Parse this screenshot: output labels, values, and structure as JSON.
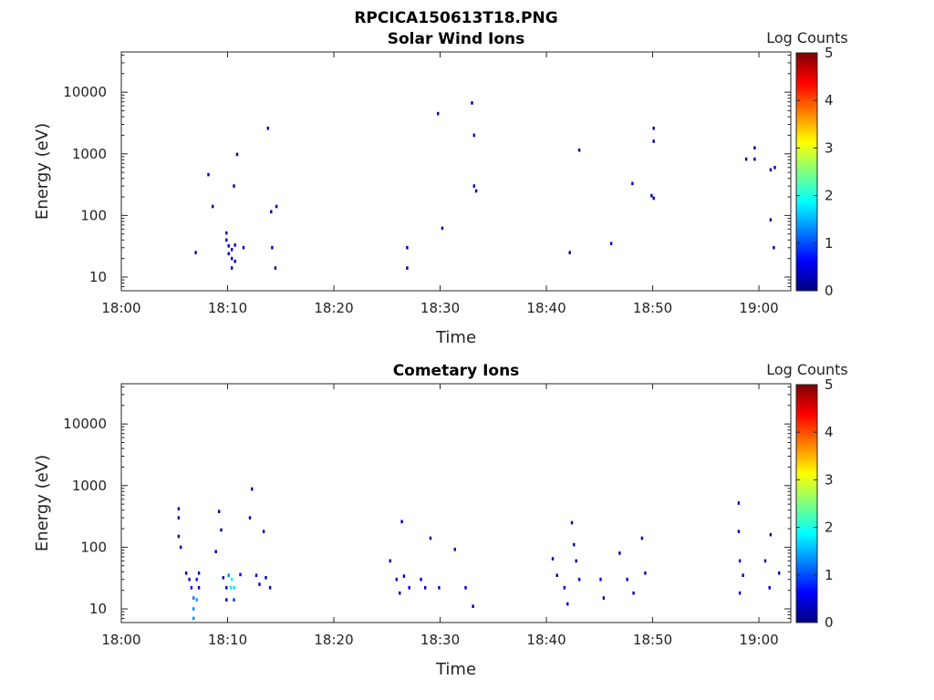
{
  "figure_title": "RPCICA150613T18.PNG",
  "chart_data": [
    {
      "type": "heatmap",
      "title": "Solar Wind Ions",
      "xlabel": "Time",
      "ylabel": "Energy (eV)",
      "x_range": [
        "18:00",
        "19:03"
      ],
      "x_ticks": [
        "18:00",
        "18:10",
        "18:20",
        "18:30",
        "18:40",
        "18:50",
        "19:00"
      ],
      "y_scale": "log",
      "y_range": [
        6,
        45000
      ],
      "y_ticks": [
        "10",
        "100",
        "1000",
        "10000"
      ],
      "colorbar": {
        "title": "Log Counts",
        "range": [
          0,
          5
        ],
        "ticks": [
          "0",
          "1",
          "2",
          "3",
          "4",
          "5"
        ],
        "colormap": "jet"
      },
      "grid": false,
      "cells": [
        {
          "t": "18:07.0",
          "e": 25,
          "v": 0.2
        },
        {
          "t": "18:08.2",
          "e": 460,
          "v": 0.2
        },
        {
          "t": "18:08.6",
          "e": 140,
          "v": 0.2
        },
        {
          "t": "18:09.9",
          "e": 52,
          "v": 0.3
        },
        {
          "t": "18:09.9",
          "e": 40,
          "v": 0.3
        },
        {
          "t": "18:10.1",
          "e": 32,
          "v": 0.4
        },
        {
          "t": "18:10.1",
          "e": 24,
          "v": 0.4
        },
        {
          "t": "18:10.4",
          "e": 20,
          "v": 0.3
        },
        {
          "t": "18:10.4",
          "e": 28,
          "v": 0.3
        },
        {
          "t": "18:10.4",
          "e": 14,
          "v": 0.2
        },
        {
          "t": "18:10.7",
          "e": 33,
          "v": 0.3
        },
        {
          "t": "18:10.7",
          "e": 18,
          "v": 0.3
        },
        {
          "t": "18:10.9",
          "e": 980,
          "v": 0.2
        },
        {
          "t": "18:10.6",
          "e": 300,
          "v": 0.2
        },
        {
          "t": "18:11.5",
          "e": 30,
          "v": 0.2
        },
        {
          "t": "18:13.8",
          "e": 2600,
          "v": 0.2
        },
        {
          "t": "18:14.1",
          "e": 115,
          "v": 0.2
        },
        {
          "t": "18:14.2",
          "e": 30,
          "v": 0.2
        },
        {
          "t": "18:14.5",
          "e": 14,
          "v": 0.2
        },
        {
          "t": "18:14.6",
          "e": 140,
          "v": 0.2
        },
        {
          "t": "18:26.9",
          "e": 30,
          "v": 0.2
        },
        {
          "t": "18:26.9",
          "e": 14,
          "v": 0.2
        },
        {
          "t": "18:29.8",
          "e": 4500,
          "v": 0.2
        },
        {
          "t": "18:30.2",
          "e": 62,
          "v": 0.2
        },
        {
          "t": "18:33.0",
          "e": 6700,
          "v": 0.2
        },
        {
          "t": "18:33.2",
          "e": 2000,
          "v": 0.2
        },
        {
          "t": "18:33.2",
          "e": 300,
          "v": 0.2
        },
        {
          "t": "18:33.4",
          "e": 250,
          "v": 0.2
        },
        {
          "t": "18:42.2",
          "e": 25,
          "v": 0.2
        },
        {
          "t": "18:43.1",
          "e": 1150,
          "v": 0.2
        },
        {
          "t": "18:46.1",
          "e": 35,
          "v": 0.2
        },
        {
          "t": "18:48.1",
          "e": 330,
          "v": 0.2
        },
        {
          "t": "18:49.9",
          "e": 210,
          "v": 0.2
        },
        {
          "t": "18:50.1",
          "e": 190,
          "v": 0.2
        },
        {
          "t": "18:50.1",
          "e": 2600,
          "v": 0.2
        },
        {
          "t": "18:50.1",
          "e": 1600,
          "v": 0.2
        },
        {
          "t": "18:58.8",
          "e": 820,
          "v": 0.2
        },
        {
          "t": "18:59.6",
          "e": 820,
          "v": 0.2
        },
        {
          "t": "18:59.6",
          "e": 1250,
          "v": 0.2
        },
        {
          "t": "19:01.1",
          "e": 85,
          "v": 0.2
        },
        {
          "t": "19:01.1",
          "e": 550,
          "v": 0.2
        },
        {
          "t": "19:01.5",
          "e": 600,
          "v": 0.2
        },
        {
          "t": "19:01.4",
          "e": 30,
          "v": 0.2
        }
      ]
    },
    {
      "type": "heatmap",
      "title": "Cometary Ions",
      "xlabel": "Time",
      "ylabel": "Energy (eV)",
      "x_range": [
        "18:00",
        "19:03"
      ],
      "x_ticks": [
        "18:00",
        "18:10",
        "18:20",
        "18:30",
        "18:40",
        "18:50",
        "19:00"
      ],
      "y_scale": "log",
      "y_range": [
        6,
        45000
      ],
      "y_ticks": [
        "10",
        "100",
        "1000",
        "10000"
      ],
      "colorbar": {
        "title": "Log Counts",
        "range": [
          0,
          5
        ],
        "ticks": [
          "0",
          "1",
          "2",
          "3",
          "4",
          "5"
        ],
        "colormap": "jet"
      },
      "grid": false,
      "cells": [
        {
          "t": "18:05.4",
          "e": 420,
          "v": 0.2
        },
        {
          "t": "18:05.4",
          "e": 300,
          "v": 0.2
        },
        {
          "t": "18:05.4",
          "e": 150,
          "v": 0.2
        },
        {
          "t": "18:05.6",
          "e": 100,
          "v": 0.2
        },
        {
          "t": "18:06.1",
          "e": 38,
          "v": 0.3
        },
        {
          "t": "18:06.4",
          "e": 30,
          "v": 0.4
        },
        {
          "t": "18:06.6",
          "e": 22,
          "v": 0.6
        },
        {
          "t": "18:06.8",
          "e": 15,
          "v": 1.2
        },
        {
          "t": "18:06.8",
          "e": 10,
          "v": 1.3
        },
        {
          "t": "18:06.8",
          "e": 7,
          "v": 1.3
        },
        {
          "t": "18:07.1",
          "e": 14,
          "v": 1.4
        },
        {
          "t": "18:07.1",
          "e": 30,
          "v": 0.7
        },
        {
          "t": "18:07.3",
          "e": 38,
          "v": 0.3
        },
        {
          "t": "18:07.3",
          "e": 22,
          "v": 0.4
        },
        {
          "t": "18:08.9",
          "e": 85,
          "v": 0.2
        },
        {
          "t": "18:09.2",
          "e": 380,
          "v": 0.2
        },
        {
          "t": "18:09.4",
          "e": 190,
          "v": 0.2
        },
        {
          "t": "18:09.6",
          "e": 32,
          "v": 0.4
        },
        {
          "t": "18:09.9",
          "e": 22,
          "v": 0.5
        },
        {
          "t": "18:09.9",
          "e": 14,
          "v": 0.3
        },
        {
          "t": "18:10.1",
          "e": 35,
          "v": 1.3
        },
        {
          "t": "18:10.3",
          "e": 22,
          "v": 1.8
        },
        {
          "t": "18:10.4",
          "e": 30,
          "v": 1.9
        },
        {
          "t": "18:10.6",
          "e": 14,
          "v": 0.9
        },
        {
          "t": "18:10.6",
          "e": 22,
          "v": 1.7
        },
        {
          "t": "18:11.2",
          "e": 36,
          "v": 0.5
        },
        {
          "t": "18:12.1",
          "e": 300,
          "v": 0.2
        },
        {
          "t": "18:12.3",
          "e": 880,
          "v": 0.2
        },
        {
          "t": "18:12.7",
          "e": 35,
          "v": 0.4
        },
        {
          "t": "18:13.0",
          "e": 25,
          "v": 0.3
        },
        {
          "t": "18:13.4",
          "e": 180,
          "v": 0.2
        },
        {
          "t": "18:13.6",
          "e": 32,
          "v": 0.4
        },
        {
          "t": "18:14.0",
          "e": 22,
          "v": 0.3
        },
        {
          "t": "18:25.3",
          "e": 60,
          "v": 0.2
        },
        {
          "t": "18:25.9",
          "e": 30,
          "v": 0.3
        },
        {
          "t": "18:26.2",
          "e": 18,
          "v": 0.3
        },
        {
          "t": "18:26.4",
          "e": 260,
          "v": 0.2
        },
        {
          "t": "18:26.6",
          "e": 34,
          "v": 0.4
        },
        {
          "t": "18:27.1",
          "e": 22,
          "v": 0.3
        },
        {
          "t": "18:28.2",
          "e": 30,
          "v": 0.3
        },
        {
          "t": "18:28.6",
          "e": 22,
          "v": 0.3
        },
        {
          "t": "18:29.1",
          "e": 140,
          "v": 0.2
        },
        {
          "t": "18:29.9",
          "e": 22,
          "v": 0.3
        },
        {
          "t": "18:31.4",
          "e": 92,
          "v": 0.2
        },
        {
          "t": "18:32.4",
          "e": 22,
          "v": 0.3
        },
        {
          "t": "18:33.1",
          "e": 11,
          "v": 0.2
        },
        {
          "t": "18:40.6",
          "e": 65,
          "v": 0.2
        },
        {
          "t": "18:41.0",
          "e": 35,
          "v": 0.3
        },
        {
          "t": "18:41.7",
          "e": 22,
          "v": 0.3
        },
        {
          "t": "18:42.0",
          "e": 12,
          "v": 0.3
        },
        {
          "t": "18:42.4",
          "e": 250,
          "v": 0.3
        },
        {
          "t": "18:42.6",
          "e": 110,
          "v": 0.3
        },
        {
          "t": "18:42.8",
          "e": 60,
          "v": 0.3
        },
        {
          "t": "18:43.1",
          "e": 30,
          "v": 0.3
        },
        {
          "t": "18:45.1",
          "e": 30,
          "v": 0.3
        },
        {
          "t": "18:45.4",
          "e": 15,
          "v": 0.2
        },
        {
          "t": "18:46.9",
          "e": 80,
          "v": 0.2
        },
        {
          "t": "18:47.6",
          "e": 30,
          "v": 0.3
        },
        {
          "t": "18:48.2",
          "e": 18,
          "v": 0.3
        },
        {
          "t": "18:49.3",
          "e": 38,
          "v": 0.3
        },
        {
          "t": "18:49.0",
          "e": 140,
          "v": 0.2
        },
        {
          "t": "18:58.1",
          "e": 520,
          "v": 0.2
        },
        {
          "t": "18:58.1",
          "e": 180,
          "v": 0.2
        },
        {
          "t": "18:58.2",
          "e": 60,
          "v": 0.3
        },
        {
          "t": "18:58.5",
          "e": 35,
          "v": 0.3
        },
        {
          "t": "18:58.2",
          "e": 18,
          "v": 0.3
        },
        {
          "t": "19:00.6",
          "e": 60,
          "v": 0.2
        },
        {
          "t": "19:01.0",
          "e": 22,
          "v": 0.3
        },
        {
          "t": "19:01.1",
          "e": 160,
          "v": 0.2
        },
        {
          "t": "19:01.9",
          "e": 38,
          "v": 0.2
        }
      ]
    }
  ]
}
